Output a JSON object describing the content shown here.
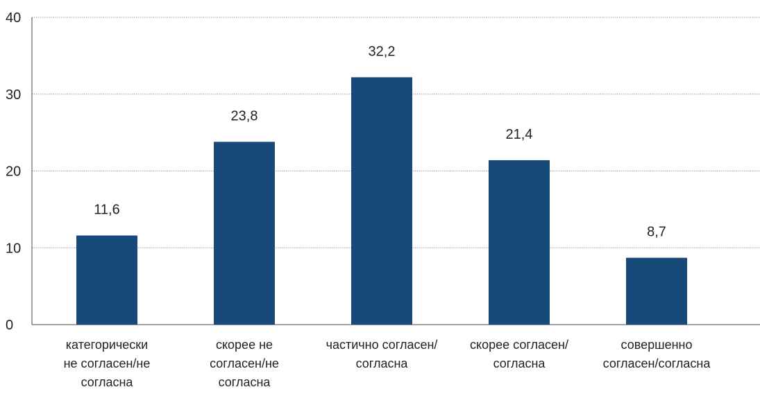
{
  "colors": {
    "bar": "#174A78",
    "grid": "#9a9a9a",
    "text": "#222222"
  },
  "chart_data": {
    "type": "bar",
    "title": "",
    "xlabel": "",
    "ylabel": "",
    "categories": [
      [
        "категорически",
        "не согласен/не",
        "согласна"
      ],
      [
        "скорее не",
        "согласен/не",
        "согласна"
      ],
      [
        "частично согласен/",
        "согласна"
      ],
      [
        "скорее согласен/",
        "согласна"
      ],
      [
        "совершенно",
        "согласен/согласна"
      ]
    ],
    "values": [
      11.6,
      23.8,
      32.2,
      21.4,
      8.7
    ],
    "value_labels": [
      "11,6",
      "23,8",
      "32,2",
      "21,4",
      "8,7"
    ],
    "yticks": [
      0,
      10,
      20,
      30,
      40
    ],
    "ylim": [
      0,
      40
    ],
    "grid": true,
    "legend": "none"
  }
}
